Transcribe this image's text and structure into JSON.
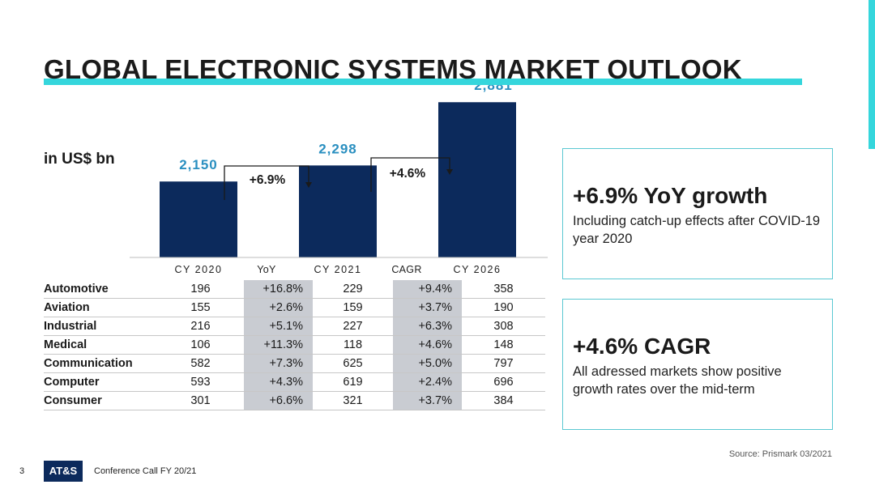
{
  "title": "GLOBAL ELECTRONIC SYSTEMS MARKET OUTLOOK",
  "unit_label": "in US$ bn",
  "colors": {
    "accent": "#35d6dc",
    "bar": "#0c2a5c",
    "value": "#2a8fc0",
    "shade": "#c9ccd2",
    "box_border": "#5bc8d2"
  },
  "chart_data": {
    "type": "bar",
    "categories": [
      "CY 2020",
      "CY 2021",
      "CY 2026"
    ],
    "values": [
      2150,
      2298,
      2881
    ],
    "value_labels": [
      "2,150",
      "2,298",
      "2,881"
    ],
    "annotations": [
      {
        "label": "+6.9%",
        "from": "CY 2020",
        "to": "CY 2021"
      },
      {
        "label": "+4.6%",
        "from": "CY 2021",
        "to": "CY 2026"
      }
    ]
  },
  "table": {
    "headers": [
      "CY 2020",
      "YoY",
      "CY 2021",
      "CAGR",
      "CY 2026"
    ],
    "rows": [
      {
        "name": "Automotive",
        "cy2020": "196",
        "yoy": "+16.8%",
        "cy2021": "229",
        "cagr": "+9.4%",
        "cy2026": "358"
      },
      {
        "name": "Aviation",
        "cy2020": "155",
        "yoy": "+2.6%",
        "cy2021": "159",
        "cagr": "+3.7%",
        "cy2026": "190"
      },
      {
        "name": "Industrial",
        "cy2020": "216",
        "yoy": "+5.1%",
        "cy2021": "227",
        "cagr": "+6.3%",
        "cy2026": "308"
      },
      {
        "name": "Medical",
        "cy2020": "106",
        "yoy": "+11.3%",
        "cy2021": "118",
        "cagr": "+4.6%",
        "cy2026": "148"
      },
      {
        "name": "Communication",
        "cy2020": "582",
        "yoy": "+7.3%",
        "cy2021": "625",
        "cagr": "+5.0%",
        "cy2026": "797"
      },
      {
        "name": "Computer",
        "cy2020": "593",
        "yoy": "+4.3%",
        "cy2021": "619",
        "cagr": "+2.4%",
        "cy2026": "696"
      },
      {
        "name": "Consumer",
        "cy2020": "301",
        "yoy": "+6.6%",
        "cy2021": "321",
        "cagr": "+3.7%",
        "cy2026": "384"
      }
    ]
  },
  "box1": {
    "heading": "+6.9% YoY growth",
    "text": "Including catch-up effects after COVID-19 year 2020"
  },
  "box2": {
    "heading": "+4.6% CAGR",
    "text": "All adressed markets show positive growth rates over the mid-term"
  },
  "source": "Source: Prismark 03/2021",
  "page_number": "3",
  "logo_text": "AT&S",
  "footer": "Conference Call FY 20/21"
}
